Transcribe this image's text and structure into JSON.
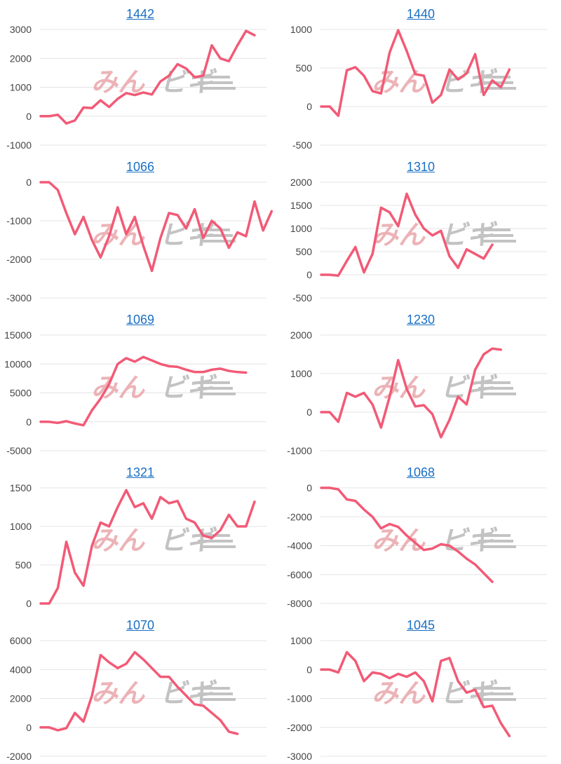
{
  "colors": {
    "line": "#f25a76",
    "grid": "#e4e4e4",
    "title_link": "#1a6fc4",
    "watermark_a": "#e9a6ab",
    "watermark_b": "#b9b9b9"
  },
  "watermark": {
    "part_a": "みん",
    "part_b": "ビギ"
  },
  "chart_data": [
    {
      "type": "line",
      "title": "1442",
      "ylim": [
        -1000,
        3000
      ],
      "yticks": [
        3000,
        2000,
        1000,
        0,
        -1000
      ],
      "values": [
        0,
        0,
        50,
        -250,
        -150,
        300,
        280,
        550,
        320,
        600,
        800,
        730,
        820,
        750,
        1200,
        1400,
        1800,
        1650,
        1350,
        1400,
        2450,
        2000,
        1900,
        2450,
        2950,
        2800
      ]
    },
    {
      "type": "line",
      "title": "1440",
      "ylim": [
        -500,
        1000
      ],
      "yticks": [
        1000,
        500,
        0,
        -500
      ],
      "values": [
        0,
        0,
        -120,
        470,
        510,
        400,
        200,
        170,
        700,
        990,
        720,
        420,
        400,
        50,
        150,
        480,
        350,
        430,
        680,
        150,
        340,
        250,
        480
      ]
    },
    {
      "type": "line",
      "title": "1066",
      "ylim": [
        -3000,
        0
      ],
      "yticks": [
        0,
        -1000,
        -2000,
        -3000
      ],
      "values": [
        0,
        0,
        -200,
        -800,
        -1350,
        -900,
        -1500,
        -1950,
        -1400,
        -650,
        -1350,
        -900,
        -1650,
        -2300,
        -1450,
        -800,
        -850,
        -1200,
        -700,
        -1450,
        -1000,
        -1200,
        -1700,
        -1300,
        -1400,
        -500,
        -1250,
        -750
      ]
    },
    {
      "type": "line",
      "title": "1310",
      "ylim": [
        -500,
        2000
      ],
      "yticks": [
        2000,
        1500,
        1000,
        500,
        0,
        -500
      ],
      "values": [
        0,
        0,
        -20,
        300,
        600,
        50,
        450,
        1450,
        1350,
        1050,
        1750,
        1300,
        1000,
        850,
        950,
        400,
        150,
        550,
        450,
        350,
        650
      ]
    },
    {
      "type": "line",
      "title": "1069",
      "ylim": [
        -5000,
        15000
      ],
      "yticks": [
        15000,
        10000,
        5000,
        0,
        -5000
      ],
      "values": [
        0,
        0,
        -200,
        100,
        -300,
        -600,
        2000,
        4000,
        6500,
        10000,
        11000,
        10400,
        11200,
        10600,
        10000,
        9600,
        9500,
        9000,
        8600,
        8600,
        9000,
        9200,
        8800,
        8600,
        8500
      ]
    },
    {
      "type": "line",
      "title": "1230",
      "ylim": [
        -1000,
        2000
      ],
      "yticks": [
        2000,
        1000,
        0,
        -1000
      ],
      "values": [
        0,
        0,
        -250,
        500,
        400,
        500,
        200,
        -400,
        400,
        1350,
        600,
        150,
        180,
        -50,
        -650,
        -200,
        400,
        200,
        1100,
        1500,
        1650,
        1620
      ]
    },
    {
      "type": "line",
      "title": "1321",
      "ylim": [
        0,
        1500
      ],
      "yticks": [
        1500,
        1000,
        500,
        0
      ],
      "values": [
        0,
        0,
        200,
        800,
        400,
        230,
        750,
        1050,
        1000,
        1250,
        1470,
        1250,
        1300,
        1100,
        1380,
        1300,
        1330,
        1100,
        1050,
        880,
        850,
        950,
        1150,
        1000,
        1000,
        1320
      ]
    },
    {
      "type": "line",
      "title": "1068",
      "ylim": [
        -8000,
        0
      ],
      "yticks": [
        0,
        -2000,
        -4000,
        -6000,
        -8000
      ],
      "values": [
        0,
        0,
        -100,
        -800,
        -900,
        -1500,
        -2000,
        -2800,
        -2500,
        -2700,
        -3300,
        -3800,
        -4300,
        -4200,
        -3900,
        -4000,
        -4400,
        -4900,
        -5300,
        -5900,
        -6500
      ]
    },
    {
      "type": "line",
      "title": "1070",
      "ylim": [
        -2000,
        6000
      ],
      "yticks": [
        6000,
        4000,
        2000,
        0,
        -2000
      ],
      "values": [
        0,
        0,
        -200,
        -50,
        1000,
        400,
        2200,
        5000,
        4500,
        4100,
        4400,
        5200,
        4700,
        4100,
        3500,
        3500,
        2800,
        2200,
        1600,
        1500,
        1000,
        500,
        -300,
        -450
      ]
    },
    {
      "type": "line",
      "title": "1045",
      "ylim": [
        -3000,
        1000
      ],
      "yticks": [
        1000,
        0,
        -1000,
        -2000,
        -3000
      ],
      "values": [
        0,
        0,
        -100,
        600,
        300,
        -400,
        -100,
        -150,
        -300,
        -150,
        -250,
        -100,
        -400,
        -1100,
        300,
        400,
        -400,
        -800,
        -700,
        -1300,
        -1250,
        -1850,
        -2300
      ]
    }
  ]
}
